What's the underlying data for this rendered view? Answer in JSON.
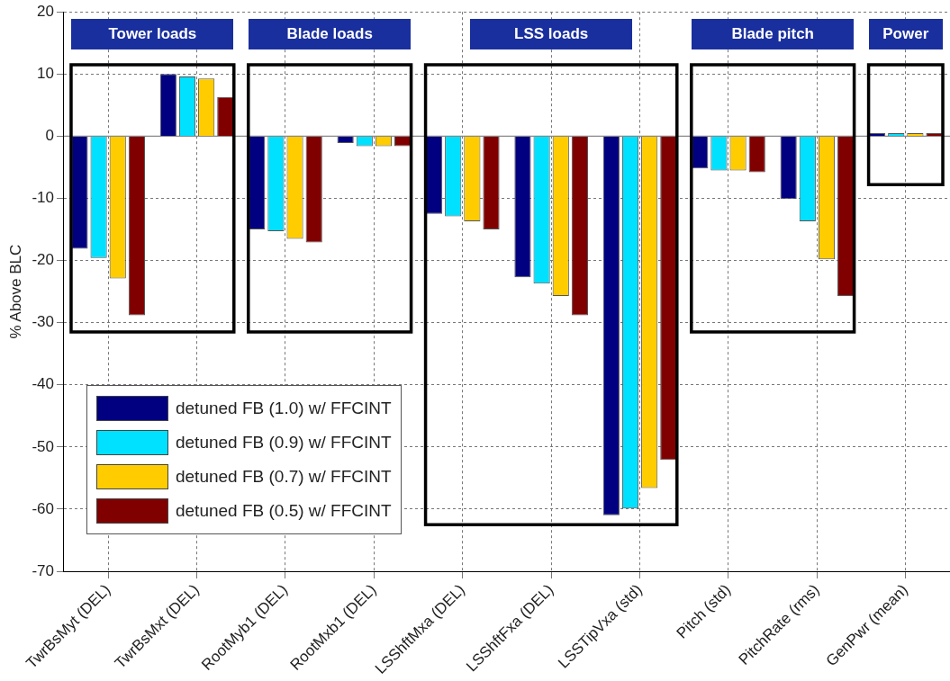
{
  "chart_data": {
    "type": "bar",
    "ylabel": "% Above BLC",
    "categories": [
      "TwrBsMyt (DEL)",
      "TwrBsMxt (DEL)",
      "RootMyb1 (DEL)",
      "RootMxb1 (DEL)",
      "LSShftMxa (DEL)",
      "LSShftFxa (DEL)",
      "LSSTipVxa (std)",
      "Pitch (std)",
      "PitchRate (rms)",
      "GenPwr (mean)"
    ],
    "series": [
      {
        "name": "detuned FB (1.0) w/ FFCINT",
        "color": "#000080",
        "values": [
          -18.1,
          10,
          -15,
          -1.1,
          -12.5,
          -22.7,
          -61,
          -5.2,
          -10.1,
          0.5
        ]
      },
      {
        "name": "detuned FB (0.9) w/ FFCINT",
        "color": "#00e0ff",
        "values": [
          -19.6,
          9.6,
          -15.3,
          -1.6,
          -12.9,
          -23.7,
          -59.9,
          -5.5,
          -13.7,
          0.5
        ]
      },
      {
        "name": "detuned FB (0.7) w/ FFCINT",
        "color": "#ffcc00",
        "values": [
          -22.9,
          9.3,
          -16.5,
          -1.6,
          -13.7,
          -25.7,
          -56.6,
          -5.5,
          -19.8,
          0.5
        ]
      },
      {
        "name": "detuned FB (0.5) w/ FFCINT",
        "color": "#800000",
        "values": [
          -28.8,
          6.3,
          -17.1,
          -1.6,
          -15,
          -28.8,
          -52.1,
          -5.8,
          -25.7,
          0.5
        ]
      }
    ],
    "ylim": [
      -70,
      20
    ],
    "yticks": [
      -70,
      -60,
      -50,
      -40,
      -30,
      -20,
      -10,
      0,
      10,
      20
    ],
    "grid": true,
    "legend": "bottom left",
    "annotations": [
      "Tower loads",
      "Blade loads",
      "LSS loads",
      "Blade pitch",
      "Power"
    ]
  }
}
